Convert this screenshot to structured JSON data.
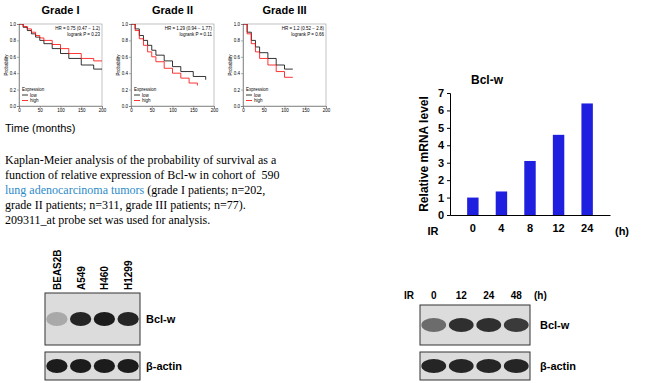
{
  "chart_data": [
    {
      "type": "step",
      "title": "Grade I",
      "x_label": "Time (months)",
      "y_label": "Probability",
      "xlim": [
        0,
        200
      ],
      "xticks": [
        0,
        50,
        100,
        150,
        200
      ],
      "ylim": [
        0,
        1
      ],
      "yticks": [
        {
          "value": 0,
          "label": "0.0"
        },
        0.2,
        0.4,
        0.6,
        0.8,
        {
          "value": 1,
          "label": "1.0"
        }
      ],
      "legend": "lower left",
      "legend_title": "Expression",
      "annotations": [
        "HR = 0.75 (0.47 − 1.2)",
        "logrank P = 0.23"
      ],
      "series": [
        {
          "name": "low",
          "color": "#000000",
          "x": [
            0,
            10,
            20,
            30,
            40,
            50,
            60,
            80,
            100,
            120,
            150,
            180,
            200
          ],
          "values": [
            1,
            0.96,
            0.92,
            0.88,
            0.84,
            0.8,
            0.76,
            0.7,
            0.64,
            0.58,
            0.5,
            0.45,
            0.45
          ]
        },
        {
          "name": "high",
          "color": "#ff0000",
          "x": [
            0,
            10,
            20,
            30,
            40,
            50,
            60,
            80,
            100,
            120,
            150,
            180,
            200
          ],
          "values": [
            1,
            0.97,
            0.94,
            0.9,
            0.86,
            0.83,
            0.8,
            0.75,
            0.7,
            0.64,
            0.58,
            0.55,
            0.55
          ]
        }
      ]
    },
    {
      "type": "step",
      "title": "Grade II",
      "y_label": "Probability",
      "xlim": [
        0,
        200
      ],
      "xticks": [
        0,
        50,
        100,
        150,
        200
      ],
      "ylim": [
        0,
        1
      ],
      "yticks": [
        {
          "value": 0,
          "label": "0.0"
        },
        0.2,
        0.4,
        0.6,
        0.8,
        {
          "value": 1,
          "label": "1.0"
        }
      ],
      "legend": "lower left",
      "legend_title": "Expression",
      "annotations": [
        "HR = 1.29 (0.94 − 1.77)",
        "logrank P = 0.11"
      ],
      "series": [
        {
          "name": "low",
          "color": "#000000",
          "x": [
            0,
            10,
            20,
            30,
            40,
            50,
            60,
            80,
            100,
            120,
            150,
            180
          ],
          "values": [
            1,
            0.94,
            0.86,
            0.8,
            0.74,
            0.68,
            0.62,
            0.55,
            0.48,
            0.42,
            0.36,
            0.32
          ]
        },
        {
          "name": "high",
          "color": "#ff0000",
          "x": [
            0,
            10,
            20,
            30,
            40,
            50,
            60,
            80,
            100,
            120,
            140,
            160
          ],
          "values": [
            1,
            0.92,
            0.82,
            0.74,
            0.66,
            0.6,
            0.54,
            0.46,
            0.4,
            0.34,
            0.28,
            0.25
          ]
        }
      ]
    },
    {
      "type": "step",
      "title": "Grade III",
      "y_label": "Probability",
      "xlim": [
        0,
        200
      ],
      "xticks": [
        0,
        50,
        100,
        150,
        200
      ],
      "ylim": [
        0,
        1
      ],
      "yticks": [
        {
          "value": 0,
          "label": "0.0"
        },
        0.2,
        0.4,
        0.6,
        0.8,
        {
          "value": 1,
          "label": "1.0"
        }
      ],
      "legend": "lower left",
      "legend_title": "Expression",
      "annotations": [
        "HR = 1.2 (0.52 − 2.8)",
        "logrank P = 0.66"
      ],
      "series": [
        {
          "name": "low",
          "color": "#000000",
          "x": [
            0,
            10,
            20,
            30,
            40,
            60,
            80,
            100,
            120
          ],
          "values": [
            1,
            0.9,
            0.8,
            0.72,
            0.65,
            0.58,
            0.5,
            0.45,
            0.45
          ]
        },
        {
          "name": "high",
          "color": "#ff0000",
          "x": [
            0,
            10,
            20,
            30,
            40,
            60,
            80,
            100,
            120
          ],
          "values": [
            1,
            0.88,
            0.76,
            0.66,
            0.58,
            0.5,
            0.42,
            0.35,
            0.35
          ]
        }
      ]
    },
    {
      "type": "bar",
      "title": "Bcl-w",
      "y_label": "Relative mRNA level",
      "categories": [
        "0",
        "4",
        "8",
        "12",
        "24"
      ],
      "values": [
        1,
        1.35,
        3.1,
        4.6,
        6.4
      ],
      "color": "#1f1fdf",
      "ylim": [
        0,
        7
      ],
      "yticks": [
        0,
        1,
        2,
        3,
        4,
        5,
        6,
        7
      ],
      "annotations": [
        "IR",
        "(h)"
      ]
    }
  ],
  "caption": {
    "lines": [
      [
        {
          "text": "Kaplan-Meier analysis of the probability of survival as a"
        }
      ],
      [
        {
          "text": "function of relative expression of Bcl-w in cohort of  590"
        }
      ],
      [
        {
          "text": "lung adenocarcinoma tumors",
          "color": "#2e8bc9"
        },
        {
          "text": " (grade I patients; n=202,"
        }
      ],
      [
        {
          "text": "grade II patients; n=311, grade III patients; n=77)."
        }
      ],
      [
        {
          "text": "209311_at probe set was used for analysis."
        }
      ]
    ]
  },
  "blots": [
    {
      "lanes": [
        "BEAS2B",
        "A549",
        "H460",
        "H1299"
      ],
      "rows": [
        {
          "label": "Bcl-w",
          "intensities": [
            0.25,
            0.9,
            0.95,
            0.9
          ]
        },
        {
          "label": "β-actin",
          "intensities": [
            0.95,
            0.95,
            0.95,
            0.95
          ]
        }
      ]
    },
    {
      "lane_title": "IR",
      "lanes": [
        "0",
        "12",
        "24",
        "48"
      ],
      "lane_unit": "(h)",
      "rows": [
        {
          "label": "Bcl-w",
          "intensities": [
            0.55,
            0.85,
            0.85,
            0.8
          ]
        },
        {
          "label": "β-actin",
          "intensities": [
            0.9,
            0.9,
            0.9,
            0.9
          ]
        }
      ]
    }
  ]
}
